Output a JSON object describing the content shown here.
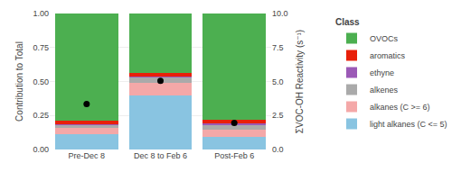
{
  "chart_data": {
    "type": "bar",
    "stacked": true,
    "categories": [
      "Pre-Dec 8",
      "Dec 8 to Feb 6",
      "Post-Feb 6"
    ],
    "series": [
      {
        "name": "light alkanes (C <= 5)",
        "color": "#89C4E1",
        "values": [
          0.115,
          0.395,
          0.095
        ]
      },
      {
        "name": "alkanes (C >= 6)",
        "color": "#F4A8A8",
        "values": [
          0.045,
          0.095,
          0.048
        ]
      },
      {
        "name": "alkenes",
        "color": "#AAAAAA",
        "values": [
          0.022,
          0.04,
          0.042
        ]
      },
      {
        "name": "ethyne",
        "color": "#9B59B6",
        "values": [
          0.004,
          0.005,
          0.005
        ]
      },
      {
        "name": "aromatics",
        "color": "#E8200A",
        "values": [
          0.024,
          0.03,
          0.03
        ]
      },
      {
        "name": "OVOCs",
        "color": "#4CAF50",
        "values": [
          0.79,
          0.435,
          0.78
        ]
      },
      {
        "type": "scatter",
        "marker": "circle",
        "color": "black",
        "values": [
          0.335,
          0.505,
          0.195
        ]
      }
    ],
    "ylim": [
      0.0,
      1.0
    ],
    "yticks": [
      {
        "value": 0.0,
        "label": "0.00"
      },
      0.25,
      {
        "value": 0.5,
        "label": "0.50"
      },
      0.75,
      {
        "value": 1.0,
        "label": "1.00"
      }
    ],
    "y2lim": [
      0.0,
      10.0
    ],
    "y2ticks": [
      {
        "value": 0.0,
        "label": "0.0"
      },
      2.5,
      {
        "value": 5.0,
        "label": "5.0"
      },
      7.5,
      {
        "value": 10.0,
        "label": "10.0"
      }
    ],
    "ylabel": "Contribution to Total",
    "y2label": "ΣVOC-OH Reactivity (s⁻¹)",
    "legend_title": "Class",
    "legend_order": [
      "OVOCs",
      "aromatics",
      "ethyne",
      "alkenes",
      "alkanes (C >= 6)",
      "light alkanes (C <= 5)"
    ],
    "legend": "right",
    "grid": true
  }
}
